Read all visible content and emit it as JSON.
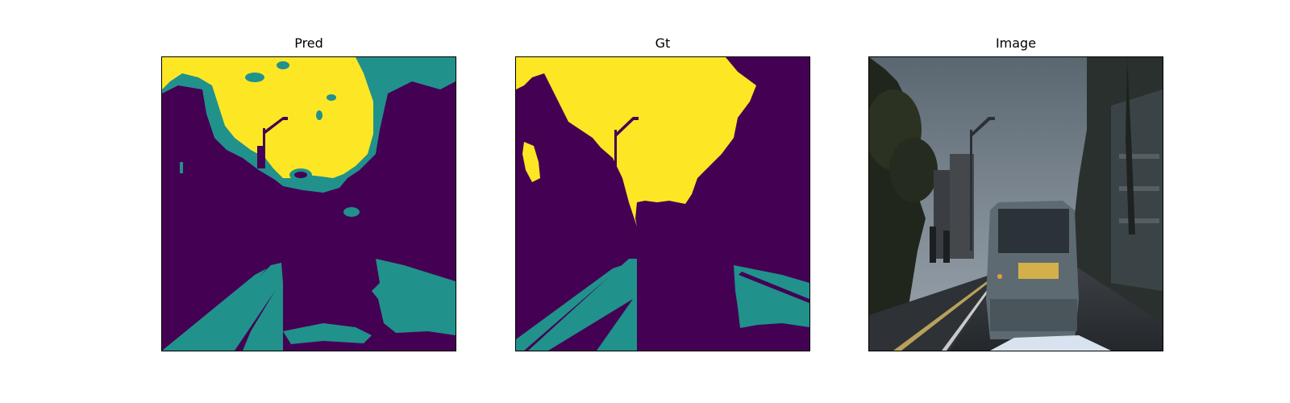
{
  "figure": {
    "panels": [
      {
        "title": "Pred"
      },
      {
        "title": "Gt"
      },
      {
        "title": "Image"
      }
    ]
  },
  "colors": {
    "class_background": "#440154",
    "class_lane": "#21918c",
    "class_sky": "#fde725"
  }
}
